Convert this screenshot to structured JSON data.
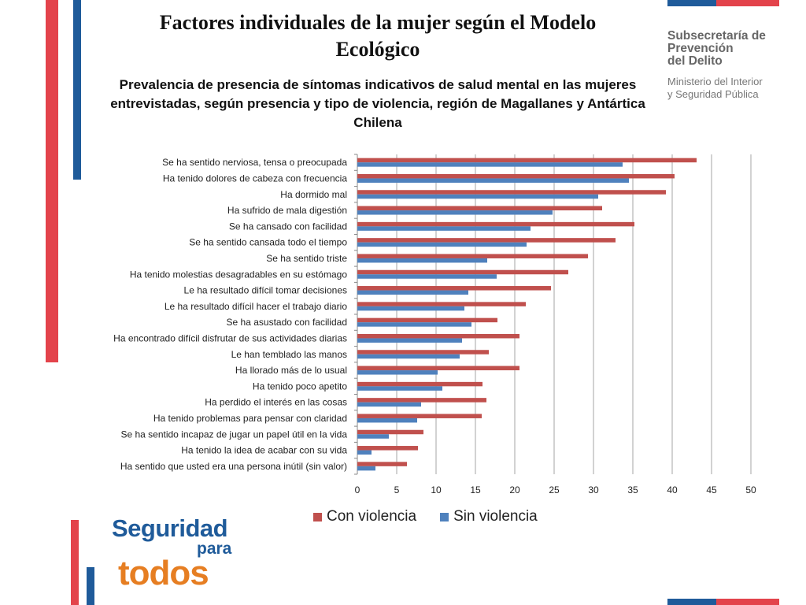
{
  "slide": {
    "title": "Factores individuales de la mujer según el Modelo Ecológico"
  },
  "brand": {
    "name": "Subsecretaría de\nPrevención\ndel Delito",
    "ministry": "Ministerio del Interior\ny Seguridad Pública"
  },
  "logo": {
    "line1": "Seguridad",
    "line2": "para",
    "line3": "todos"
  },
  "colors": {
    "con_violencia": "#c0504d",
    "sin_violencia": "#4f81bd",
    "accent_red": "#e3434b",
    "accent_blue": "#1f5b9a"
  },
  "chart_data": {
    "type": "bar",
    "orientation": "horizontal",
    "title": "Prevalencia de presencia de síntomas indicativos de salud mental en las mujeres entrevistadas, según presencia y tipo de violencia, región de Magallanes y Antártica Chilena",
    "categories": [
      "Se ha sentido nerviosa, tensa o preocupada",
      "Ha tenido dolores de cabeza con frecuencia",
      "Ha dormido mal",
      "Ha sufrido de mala digestión",
      "Se ha cansado con facilidad",
      "Se ha sentido cansada todo el tiempo",
      "Se ha sentido triste",
      "Ha tenido molestias desagradables en su estómago",
      "Le ha resultado difícil tomar decisiones",
      "Le ha resultado difícil hacer el trabajo diario",
      "Se ha asustado con facilidad",
      "Ha encontrado difícil disfrutar de sus actividades diarias",
      "Le han temblado las manos",
      "Ha llorado más de lo usual",
      "Ha tenido poco apetito",
      "Ha perdido el interés en las cosas",
      "Ha tenido problemas para pensar con claridad",
      "Se ha sentido incapaz de jugar un papel útil en la vida",
      "Ha tenido la idea de acabar con su vida",
      "Ha sentido que usted era una persona inútil (sin valor)"
    ],
    "series": [
      {
        "name": "Con violencia",
        "values": [
          43.1,
          40.3,
          39.2,
          31.1,
          35.2,
          32.8,
          29.3,
          26.8,
          24.6,
          21.4,
          17.8,
          20.6,
          16.7,
          20.6,
          15.9,
          16.4,
          15.8,
          8.4,
          7.7,
          6.3
        ]
      },
      {
        "name": "Sin violencia",
        "values": [
          33.7,
          34.5,
          30.6,
          24.8,
          22.0,
          21.5,
          16.5,
          17.7,
          14.1,
          13.6,
          14.5,
          13.3,
          13.0,
          10.2,
          10.8,
          8.1,
          7.6,
          4.0,
          1.8,
          2.3
        ]
      }
    ],
    "xlim": [
      0,
      50
    ],
    "xticks": [
      "0",
      "5",
      "10",
      "15",
      "20",
      "25",
      "30",
      "35",
      "40",
      "45",
      "50"
    ],
    "grid": true,
    "legend": "bottom"
  }
}
